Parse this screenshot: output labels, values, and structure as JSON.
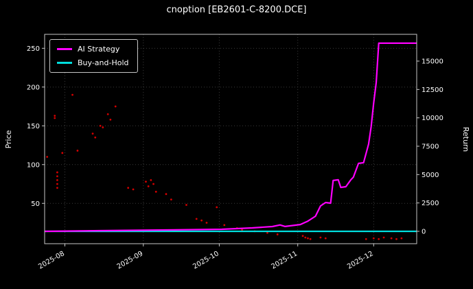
{
  "window": {
    "title": "cnoption [EB2601-C-8200.DCE]"
  },
  "legend": {
    "items": [
      {
        "label": "AI Strategy",
        "color": "#ff00ff"
      },
      {
        "label": "Buy-and-Hold",
        "color": "#00dede"
      }
    ]
  },
  "chart_data": {
    "type": "line",
    "title": "cnoption [EB2601-C-8200.DCE]",
    "xlabel": "",
    "ylabel_left": "Price",
    "ylabel_right": "Return",
    "legend_position": "upper-left",
    "grid": true,
    "background": "#000000",
    "text_color": "#ffffff",
    "grid_color": "#3c3c3c",
    "x_domain": [
      "2025-07-24",
      "2025-12-18"
    ],
    "x_ticks": [
      {
        "value": "2025-08-01",
        "label": "2025-08"
      },
      {
        "value": "2025-09-01",
        "label": "2025-09"
      },
      {
        "value": "2025-10-01",
        "label": "2025-10"
      },
      {
        "value": "2025-11-01",
        "label": "2025-11"
      },
      {
        "value": "2025-12-01",
        "label": "2025-12"
      }
    ],
    "left_ylim": [
      -2,
      268
    ],
    "left_ticks": [
      50,
      100,
      150,
      200,
      250
    ],
    "right_ylim": [
      -1090,
      17360
    ],
    "right_ticks": [
      0,
      2500,
      5000,
      7500,
      10000,
      12500,
      15000
    ],
    "series": [
      {
        "name": "Price",
        "type": "scatter",
        "axis": "left",
        "color": "#d40000",
        "points": [
          [
            "2025-07-25",
            110
          ],
          [
            "2025-07-28",
            163
          ],
          [
            "2025-07-28",
            160
          ],
          [
            "2025-07-29",
            90
          ],
          [
            "2025-07-29",
            85
          ],
          [
            "2025-07-29",
            80
          ],
          [
            "2025-07-29",
            75
          ],
          [
            "2025-07-29",
            70
          ],
          [
            "2025-07-31",
            115
          ],
          [
            "2025-08-04",
            190
          ],
          [
            "2025-08-06",
            118
          ],
          [
            "2025-08-12",
            140
          ],
          [
            "2025-08-13",
            135
          ],
          [
            "2025-08-15",
            150
          ],
          [
            "2025-08-16",
            148
          ],
          [
            "2025-08-18",
            165
          ],
          [
            "2025-08-19",
            158
          ],
          [
            "2025-08-21",
            175
          ],
          [
            "2025-08-26",
            70
          ],
          [
            "2025-08-28",
            68
          ],
          [
            "2025-09-02",
            78
          ],
          [
            "2025-09-03",
            72
          ],
          [
            "2025-09-04",
            80
          ],
          [
            "2025-09-05",
            75
          ],
          [
            "2025-09-06",
            65
          ],
          [
            "2025-09-10",
            62
          ],
          [
            "2025-09-12",
            55
          ],
          [
            "2025-09-18",
            48
          ],
          [
            "2025-09-22",
            30
          ],
          [
            "2025-09-24",
            28
          ],
          [
            "2025-09-26",
            25
          ],
          [
            "2025-09-30",
            45
          ],
          [
            "2025-10-03",
            22
          ],
          [
            "2025-10-08",
            18
          ],
          [
            "2025-10-10",
            16
          ],
          [
            "2025-10-15",
            14
          ],
          [
            "2025-10-20",
            12
          ],
          [
            "2025-10-24",
            10
          ],
          [
            "2025-11-03",
            8
          ],
          [
            "2025-11-04",
            6
          ],
          [
            "2025-11-05",
            5
          ],
          [
            "2025-11-06",
            4
          ],
          [
            "2025-11-10",
            6
          ],
          [
            "2025-11-12",
            5
          ],
          [
            "2025-11-28",
            4
          ],
          [
            "2025-12-01",
            5
          ],
          [
            "2025-12-03",
            4
          ],
          [
            "2025-12-05",
            6
          ],
          [
            "2025-12-08",
            5
          ],
          [
            "2025-12-10",
            4
          ],
          [
            "2025-12-12",
            5
          ]
        ]
      },
      {
        "name": "Buy-and-Hold",
        "type": "line",
        "axis": "right",
        "color": "#00dede",
        "width": 2.2,
        "points": [
          [
            "2025-07-24",
            0
          ],
          [
            "2025-12-18",
            0
          ]
        ]
      },
      {
        "name": "AI Strategy",
        "type": "line",
        "axis": "right",
        "color": "#ff00ff",
        "width": 2.2,
        "points": [
          [
            "2025-07-24",
            0
          ],
          [
            "2025-08-15",
            60
          ],
          [
            "2025-09-10",
            120
          ],
          [
            "2025-10-02",
            180
          ],
          [
            "2025-10-14",
            300
          ],
          [
            "2025-10-22",
            420
          ],
          [
            "2025-10-25",
            560
          ],
          [
            "2025-10-27",
            430
          ],
          [
            "2025-11-02",
            600
          ],
          [
            "2025-11-05",
            900
          ],
          [
            "2025-11-08",
            1330
          ],
          [
            "2025-11-10",
            2240
          ],
          [
            "2025-11-12",
            2540
          ],
          [
            "2025-11-14",
            2480
          ],
          [
            "2025-11-15",
            4480
          ],
          [
            "2025-11-17",
            4540
          ],
          [
            "2025-11-18",
            3870
          ],
          [
            "2025-11-20",
            3930
          ],
          [
            "2025-11-22",
            4540
          ],
          [
            "2025-11-23",
            4780
          ],
          [
            "2025-11-25",
            5990
          ],
          [
            "2025-11-27",
            6050
          ],
          [
            "2025-11-29",
            7680
          ],
          [
            "2025-11-30",
            9200
          ],
          [
            "2025-12-01",
            11300
          ],
          [
            "2025-12-02",
            13100
          ],
          [
            "2025-12-03",
            16580
          ],
          [
            "2025-12-18",
            16580
          ]
        ]
      }
    ]
  }
}
